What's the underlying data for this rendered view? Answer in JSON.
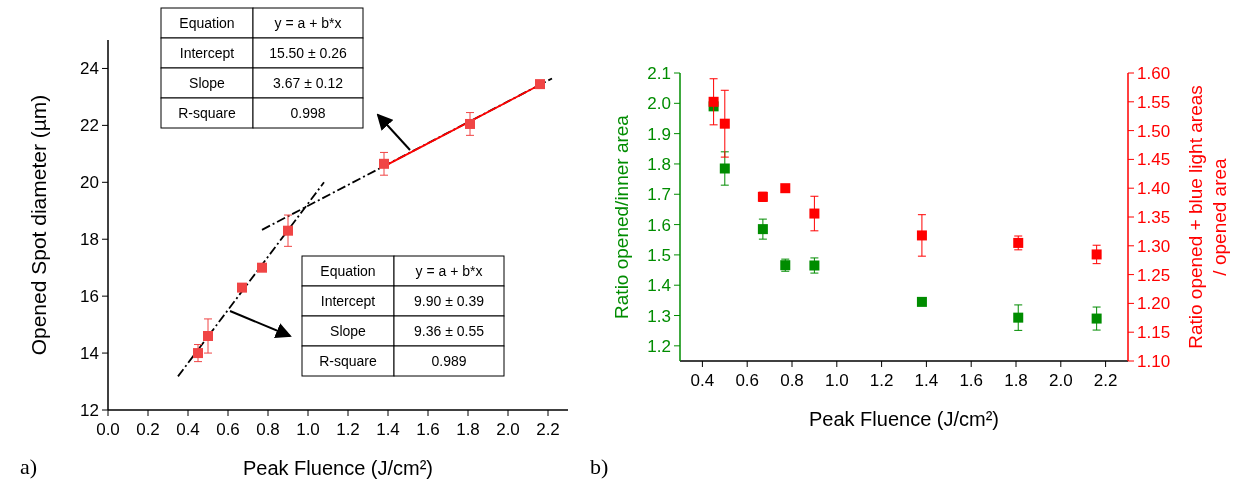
{
  "chart_data": [
    {
      "type": "scatter",
      "xlabel": "Peak Fluence (J/cm²)",
      "ylabel": "Opened Spot diameter (µm)",
      "xlim": [
        0,
        2.3
      ],
      "ylim": [
        12,
        25
      ],
      "xticks": [
        {
          "value": 0,
          "label": "0.0"
        },
        0.2,
        0.4,
        0.6,
        0.8,
        {
          "value": 1,
          "label": "1.0"
        },
        1.2,
        1.4,
        1.6,
        1.8,
        {
          "value": 2,
          "label": "2.0"
        },
        2.2
      ],
      "yticks": [
        12,
        14,
        16,
        18,
        20,
        22,
        24
      ],
      "grid": false,
      "marker": "square",
      "series": [
        {
          "type": "line",
          "marker": "none",
          "color": "#000000",
          "line_style": "dashed",
          "x": [
            0.35,
            1.08
          ],
          "values": [
            13.18,
            20.0
          ]
        },
        {
          "type": "line",
          "marker": "none",
          "color": "#000000",
          "line_style": "dashed",
          "x": [
            0.77,
            2.22
          ],
          "values": [
            18.33,
            23.65
          ]
        },
        {
          "type": "line",
          "marker": "none",
          "color": "#ff0000",
          "line_style": "solid",
          "x": [
            1.38,
            2.16
          ],
          "values": [
            20.56,
            23.43
          ]
        },
        {
          "color": "#f04545",
          "x": [
            0.45,
            0.5,
            0.67,
            0.77,
            0.9,
            1.38,
            1.81,
            2.16
          ],
          "values": [
            14.0,
            14.6,
            16.3,
            17.0,
            18.3,
            20.65,
            22.05,
            23.45
          ],
          "errors": [
            0.3,
            0.6,
            null,
            null,
            0.55,
            0.4,
            0.4,
            null
          ]
        }
      ],
      "annotations": [
        "a)",
        "Equation",
        "y = a + b*x",
        "Intercept",
        "15.50 ± 0.26",
        "Slope",
        "3.67 ±  0.12",
        "R-square",
        "0.998",
        "Equation",
        "y = a + b*x",
        "Intercept",
        "9.90 ± 0.39",
        "Slope",
        "9.36 ±  0.55",
        "R-square",
        "0.989"
      ]
    },
    {
      "type": "scatter",
      "xlabel": "Peak Fluence (J/cm²)",
      "ylabel": "Ratio opened/inner area",
      "y2label": "Ratio opened + blue light areas / opened area",
      "xlim": [
        0.3,
        2.3
      ],
      "ylim": [
        1.15,
        2.1
      ],
      "y2lim": [
        1.1,
        1.6
      ],
      "xticks": [
        0.4,
        0.6,
        0.8,
        {
          "value": 1,
          "label": "1.0"
        },
        1.2,
        1.4,
        1.6,
        1.8,
        {
          "value": 2,
          "label": "2.0"
        },
        2.2
      ],
      "yticks": [
        1.2,
        1.3,
        1.4,
        1.5,
        1.6,
        1.7,
        1.8,
        1.9,
        {
          "value": 2,
          "label": "2.0"
        },
        2.1
      ],
      "y2ticks": [
        {
          "value": 1.1,
          "label": "1.10"
        },
        1.15,
        {
          "value": 1.2,
          "label": "1.20"
        },
        1.25,
        {
          "value": 1.3,
          "label": "1.30"
        },
        1.35,
        {
          "value": 1.4,
          "label": "1.40"
        },
        1.45,
        {
          "value": 1.5,
          "label": "1.50"
        },
        1.55,
        {
          "value": 1.6,
          "label": "1.60"
        }
      ],
      "grid": false,
      "marker": "square",
      "series": [
        {
          "color": "#008c00",
          "x": [
            0.45,
            0.5,
            0.67,
            0.77,
            0.9,
            1.38,
            1.81,
            2.16
          ],
          "values": [
            1.99,
            1.785,
            1.585,
            1.466,
            1.465,
            1.345,
            1.293,
            1.29
          ],
          "errors": [
            0.01,
            0.055,
            0.033,
            0.02,
            0.025,
            null,
            0.042,
            0.038
          ]
        },
        {
          "axis": "y2",
          "color": "#ff0000",
          "x": [
            0.45,
            0.5,
            0.67,
            0.77,
            0.9,
            1.38,
            1.81,
            2.16
          ],
          "values": [
            1.55,
            1.512,
            1.385,
            1.4,
            1.356,
            1.318,
            1.305,
            1.285
          ],
          "errors": [
            0.04,
            0.058,
            0.008,
            0.006,
            0.03,
            0.036,
            0.012,
            0.016
          ]
        }
      ],
      "annotations": [
        "b)"
      ]
    }
  ]
}
